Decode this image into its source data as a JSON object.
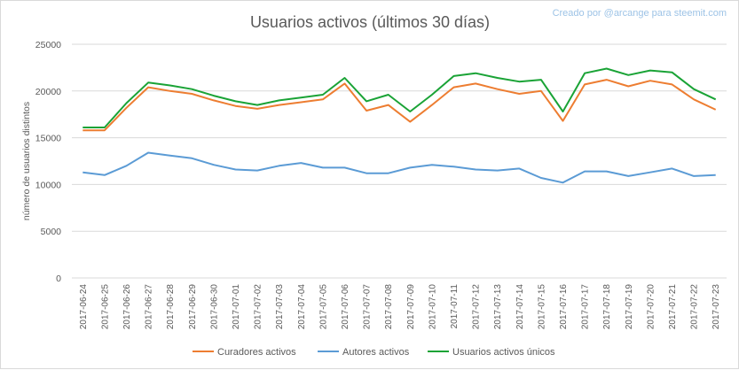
{
  "chart_data": {
    "type": "line",
    "title": "Usuarios activos (últimos 30 días)",
    "credit": "Creado por @arcange para steemit.com",
    "xlabel": "",
    "ylabel": "número de usuarios distintos",
    "ylim": [
      0,
      25000
    ],
    "yticks": [
      "0",
      "5000",
      "10000",
      "15000",
      "20000",
      "25000"
    ],
    "grid": true,
    "legend_position": "bottom",
    "categories": [
      "2017-06-24",
      "2017-06-25",
      "2017-06-26",
      "2017-06-27",
      "2017-06-28",
      "2017-06-29",
      "2017-06-30",
      "2017-07-01",
      "2017-07-02",
      "2017-07-03",
      "2017-07-04",
      "2017-07-05",
      "2017-07-06",
      "2017-07-07",
      "2017-07-08",
      "2017-07-09",
      "2017-07-10",
      "2017-07-11",
      "2017-07-12",
      "2017-07-13",
      "2017-07-14",
      "2017-07-15",
      "2017-07-16",
      "2017-07-17",
      "2017-07-18",
      "2017-07-19",
      "2017-07-20",
      "2017-07-21",
      "2017-07-22",
      "2017-07-23"
    ],
    "series": [
      {
        "name": "Curadores activos",
        "color": "#ed7d31",
        "values": [
          15800,
          15800,
          18200,
          20400,
          20000,
          19700,
          19000,
          18400,
          18100,
          18500,
          18800,
          19100,
          20800,
          17900,
          18500,
          16700,
          18500,
          20400,
          20800,
          20200,
          19700,
          20000,
          16800,
          20700,
          21200,
          20500,
          21100,
          20700,
          19100,
          18000
        ]
      },
      {
        "name": "Autores activos",
        "color": "#5b9bd5",
        "values": [
          11300,
          11000,
          12000,
          13400,
          13100,
          12800,
          12100,
          11600,
          11500,
          12000,
          12300,
          11800,
          11800,
          11200,
          11200,
          11800,
          12100,
          11900,
          11600,
          11500,
          11700,
          10700,
          10200,
          11400,
          11400,
          10900,
          11300,
          11700,
          10900,
          11000
        ]
      },
      {
        "name": "Usuarios activos únicos",
        "color": "#1aa336",
        "values": [
          16100,
          16100,
          18700,
          20900,
          20600,
          20200,
          19500,
          18900,
          18500,
          19000,
          19300,
          19600,
          21400,
          18900,
          19600,
          17800,
          19600,
          21600,
          21900,
          21400,
          21000,
          21200,
          17800,
          21900,
          22400,
          21700,
          22200,
          22000,
          20200,
          19100
        ]
      }
    ]
  }
}
